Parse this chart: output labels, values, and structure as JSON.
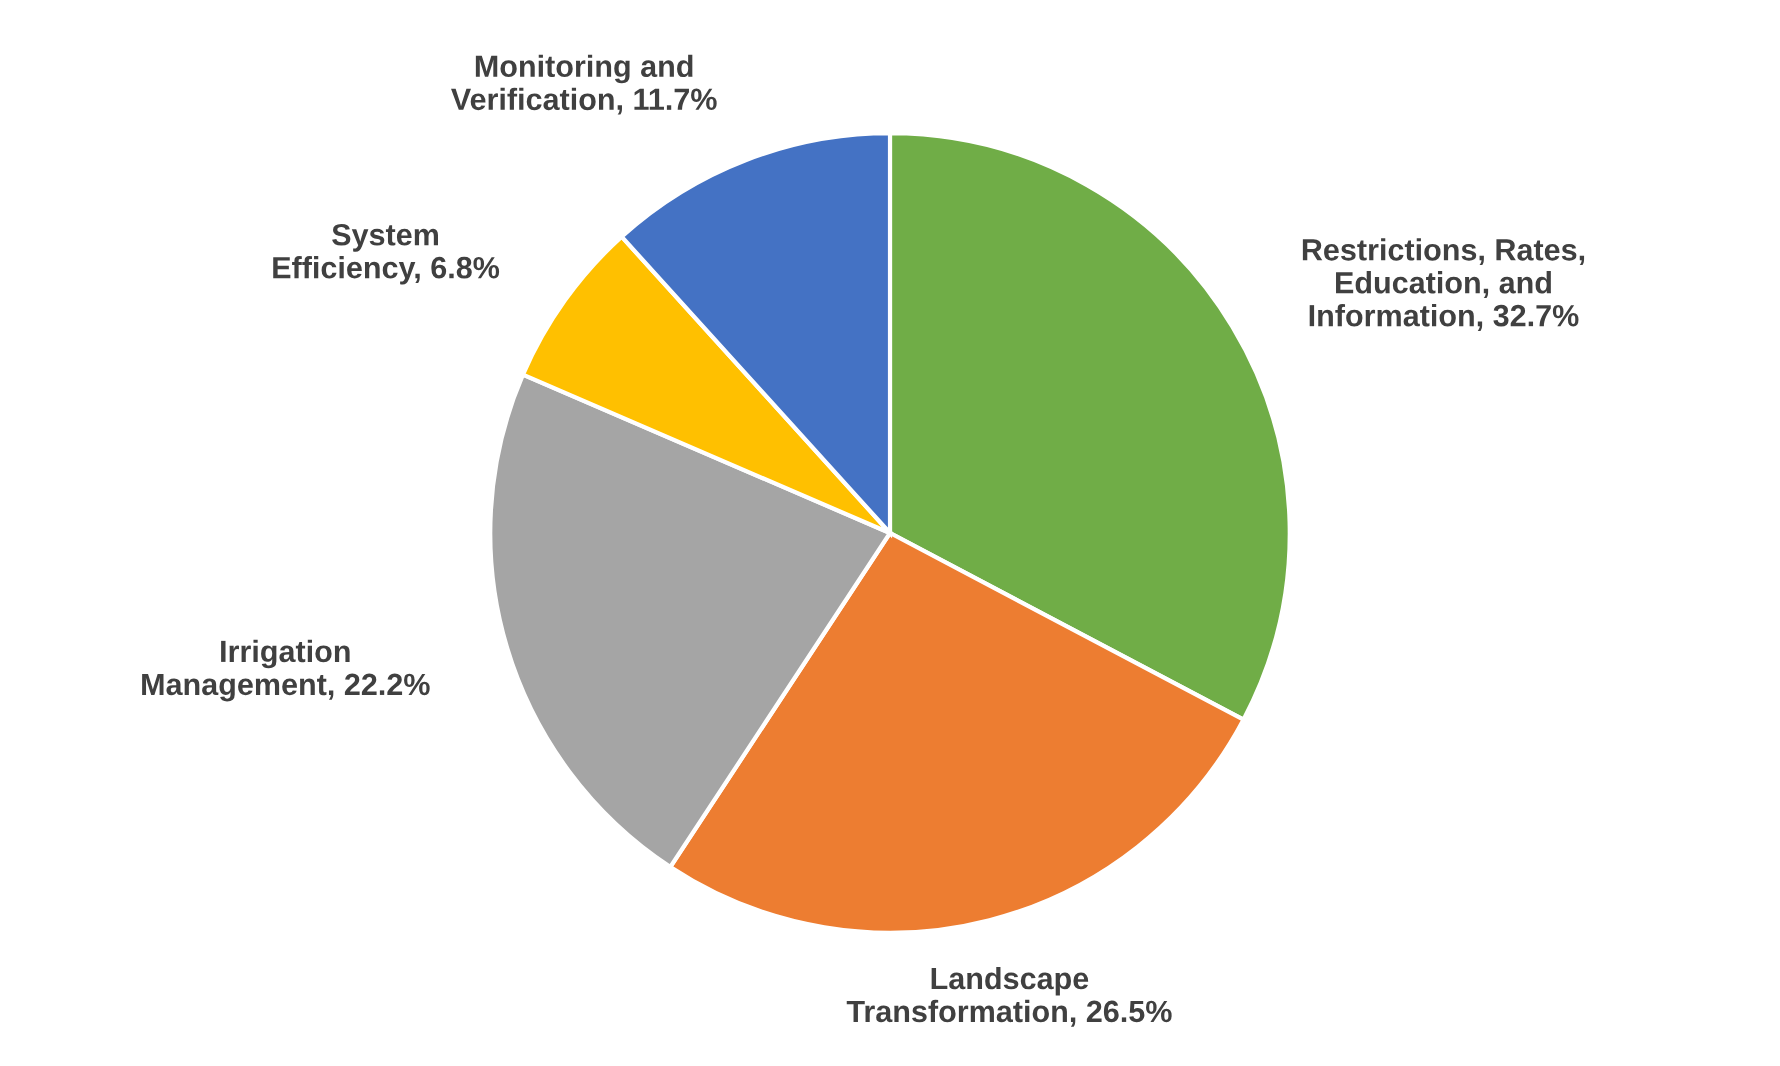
{
  "chart_data": {
    "type": "pie",
    "categories": [
      "Restrictions, Rates, Education, and Information",
      "Landscape Transformation",
      "Irrigation Management",
      "System Efficiency",
      "Monitoring and Verification"
    ],
    "values": [
      32.7,
      26.5,
      22.2,
      6.8,
      11.7
    ],
    "value_labels": [
      "32.7%",
      "26.5%",
      "22.2%",
      "6.8%",
      "11.7%"
    ],
    "colors": [
      "#70ad47",
      "#ed7d31",
      "#a5a5a5",
      "#ffc000",
      "#4472c4"
    ]
  }
}
